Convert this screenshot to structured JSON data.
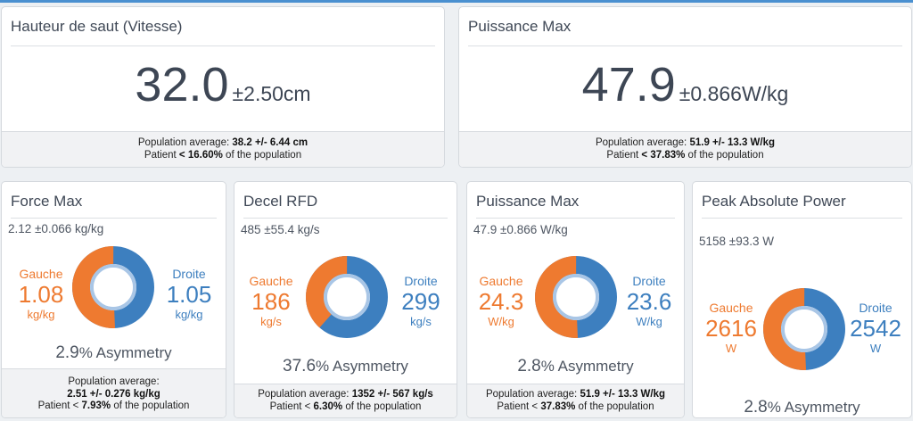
{
  "top_cards": [
    {
      "title": "Hauteur de saut (Vitesse)",
      "value": "32.0",
      "unit": "±2.50cm",
      "footer_line1_label": "Population average:",
      "footer_line1_value": "38.2 +/- 6.44 cm",
      "footer_line2_prefix": "Patient",
      "footer_line2_value": "< 16.60%",
      "footer_line2_suffix": "of the population"
    },
    {
      "title": "Puissance Max",
      "value": "47.9",
      "unit": "±0.866W/kg",
      "footer_line1_label": "Population average:",
      "footer_line1_value": "51.9 +/- 13.3 W/kg",
      "footer_line2_prefix": "Patient",
      "footer_line2_value": "< 37.83%",
      "footer_line2_suffix": "of the population"
    }
  ],
  "asym_cards": [
    {
      "title": "Force Max",
      "summary": "2.12  ±0.066 kg/kg",
      "left_label": "Gauche",
      "left_value": "1.08",
      "left_unit": "kg/kg",
      "right_label": "Droite",
      "right_value": "1.05",
      "right_unit": "kg/kg",
      "left_fraction": 0.507,
      "asym_value": "2.9",
      "asym_label": "% Asymmetry",
      "footer_line1": "Population average:",
      "footer_line2": "2.51 +/- 0.276 kg/kg",
      "footer_line3_prefix": "Patient <",
      "footer_line3_value": "7.93%",
      "footer_line3_suffix": "of the population"
    },
    {
      "title": "Decel RFD",
      "summary": "485  ±55.4 kg/s",
      "left_label": "Gauche",
      "left_value": "186",
      "left_unit": "kg/s",
      "right_label": "Droite",
      "right_value": "299",
      "right_unit": "kg/s",
      "left_fraction": 0.384,
      "asym_value": "37.6",
      "asym_label": "% Asymmetry",
      "footer_line1": "Population average:",
      "footer_line2": "1352 +/- 567 kg/s",
      "footer_line3_prefix": "Patient <",
      "footer_line3_value": "6.30%",
      "footer_line3_suffix": "of the population"
    },
    {
      "title": "Puissance Max",
      "summary": "47.9  ±0.866 W/kg",
      "left_label": "Gauche",
      "left_value": "24.3",
      "left_unit": "W/kg",
      "right_label": "Droite",
      "right_value": "23.6",
      "right_unit": "W/kg",
      "left_fraction": 0.507,
      "asym_value": "2.8",
      "asym_label": "% Asymmetry",
      "footer_line1": "Population average:",
      "footer_line2": "51.9 +/- 13.3 W/kg",
      "footer_line3_prefix": "Patient <",
      "footer_line3_value": "37.83%",
      "footer_line3_suffix": "of the population"
    },
    {
      "title": "Peak Absolute Power",
      "summary": "5158  ±93.3 W",
      "left_label": "Gauche",
      "left_value": "2616",
      "left_unit": "W",
      "right_label": "Droite",
      "right_value": "2542",
      "right_unit": "W",
      "left_fraction": 0.507,
      "asym_value": "2.8",
      "asym_label": "% Asymmetry"
    }
  ],
  "colors": {
    "left": "#ee7a30",
    "right": "#3d7fbf",
    "ring": "#a9c6e6"
  }
}
